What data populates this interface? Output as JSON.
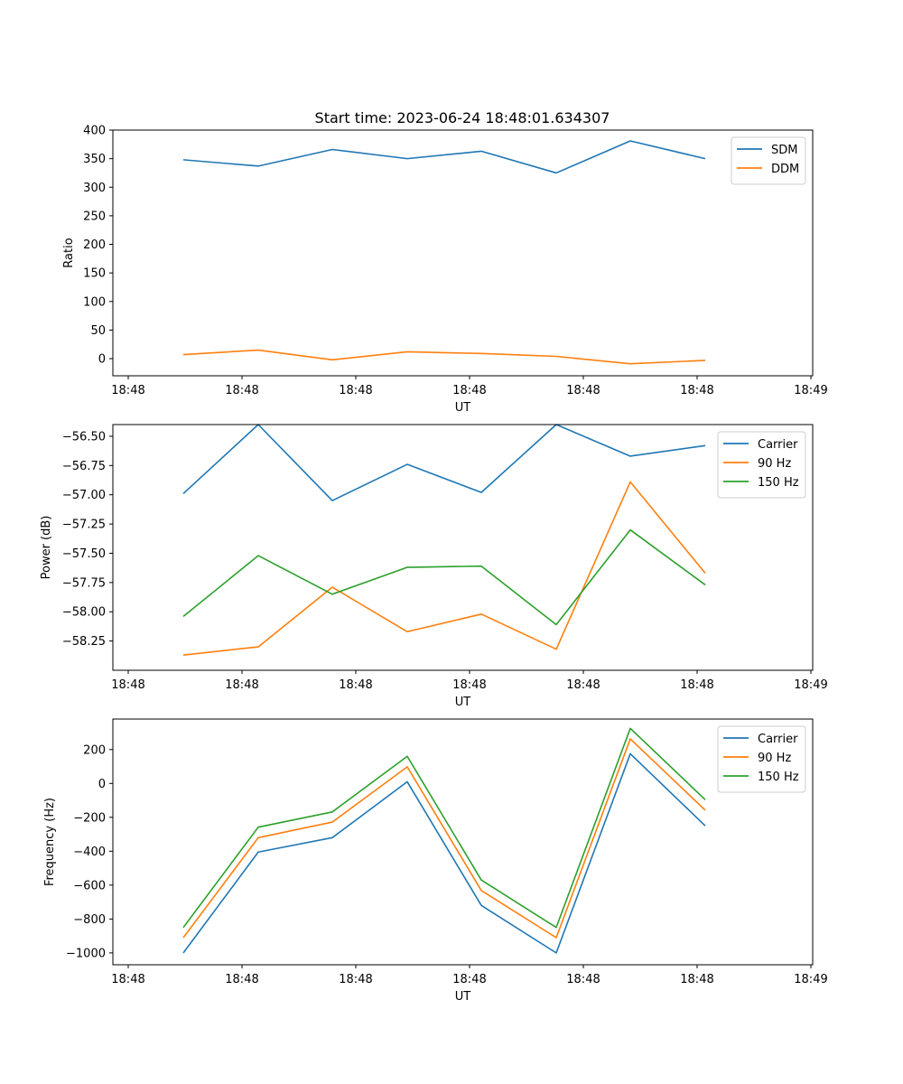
{
  "figure": {
    "title": "Start time: 2023-06-24 18:48:01.634307"
  },
  "chart_data": [
    {
      "type": "line",
      "title": "Start time: 2023-06-24 18:48:01.634307",
      "xlabel": "UT",
      "ylabel": "Ratio",
      "x_tick_labels": [
        "18:48",
        "18:48",
        "18:48",
        "18:48",
        "18:48",
        "18:48",
        "18:49"
      ],
      "ylim": [
        -30,
        400
      ],
      "y_ticks": [
        0,
        50,
        100,
        150,
        200,
        250,
        300,
        350,
        400
      ],
      "legend_position": "top-right",
      "grid": false,
      "series": [
        {
          "name": "SDM",
          "color": "#1f77b4",
          "values": [
            348,
            337,
            366,
            350,
            363,
            325,
            381,
            350
          ]
        },
        {
          "name": "DDM",
          "color": "#ff7f0e",
          "values": [
            7,
            15,
            -2,
            12,
            9,
            4,
            -9,
            -3
          ]
        }
      ]
    },
    {
      "type": "line",
      "xlabel": "UT",
      "ylabel": "Power (dB)",
      "x_tick_labels": [
        "18:48",
        "18:48",
        "18:48",
        "18:48",
        "18:48",
        "18:48",
        "18:49"
      ],
      "ylim": [
        -58.5,
        -56.4
      ],
      "y_ticks": [
        -58.25,
        -58.0,
        -57.75,
        -57.5,
        -57.25,
        -57.0,
        -56.75,
        -56.5
      ],
      "y_tick_labels": [
        "−58.25",
        "−58.00",
        "−57.75",
        "−57.50",
        "−57.25",
        "−57.00",
        "−56.75",
        "−56.50"
      ],
      "legend_position": "top-right",
      "grid": false,
      "series": [
        {
          "name": "Carrier",
          "color": "#1f77b4",
          "values": [
            -56.99,
            -56.4,
            -57.05,
            -56.74,
            -56.98,
            -56.4,
            -56.67,
            -56.58
          ]
        },
        {
          "name": "90 Hz",
          "color": "#ff7f0e",
          "values": [
            -58.37,
            -58.3,
            -57.79,
            -58.17,
            -58.02,
            -58.32,
            -56.89,
            -57.67
          ]
        },
        {
          "name": "150 Hz",
          "color": "#2ca02c",
          "values": [
            -58.04,
            -57.52,
            -57.85,
            -57.62,
            -57.61,
            -58.11,
            -57.3,
            -57.77
          ]
        }
      ]
    },
    {
      "type": "line",
      "xlabel": "UT",
      "ylabel": "Frequency (Hz)",
      "x_tick_labels": [
        "18:48",
        "18:48",
        "18:48",
        "18:48",
        "18:48",
        "18:48",
        "18:49"
      ],
      "ylim": [
        -1070,
        380
      ],
      "y_ticks": [
        -1000,
        -800,
        -600,
        -400,
        -200,
        0,
        200
      ],
      "y_tick_labels": [
        "−1000",
        "−800",
        "−600",
        "−400",
        "−200",
        "0",
        "200"
      ],
      "legend_position": "top-right",
      "grid": false,
      "series": [
        {
          "name": "Carrier",
          "color": "#1f77b4",
          "values": [
            -1000,
            -405,
            -320,
            10,
            -720,
            -1000,
            175,
            -250
          ]
        },
        {
          "name": "90 Hz",
          "color": "#ff7f0e",
          "values": [
            -910,
            -320,
            -228,
            98,
            -632,
            -910,
            263,
            -158
          ]
        },
        {
          "name": "150 Hz",
          "color": "#2ca02c",
          "values": [
            -850,
            -258,
            -168,
            160,
            -570,
            -850,
            325,
            -96
          ]
        }
      ]
    }
  ]
}
